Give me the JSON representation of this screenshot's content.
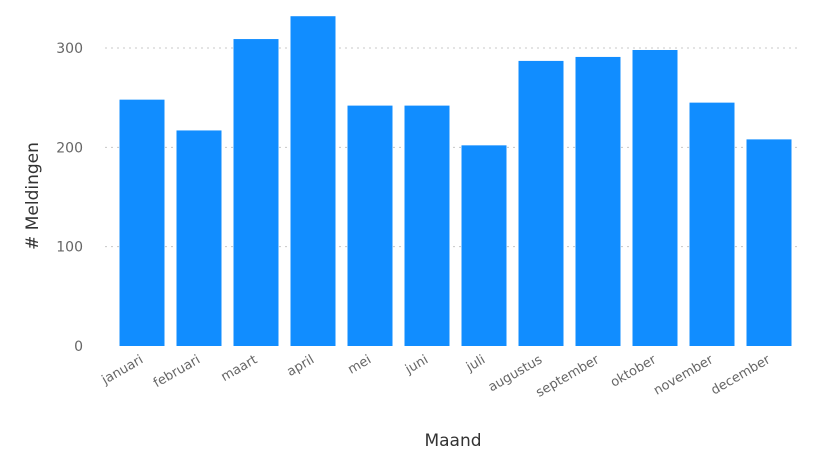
{
  "chart_data": {
    "type": "bar",
    "xlabel": "Maand",
    "ylabel": "# Meldingen",
    "categories": [
      "januari",
      "februari",
      "maart",
      "april",
      "mei",
      "juni",
      "juli",
      "augustus",
      "september",
      "oktober",
      "november",
      "december"
    ],
    "values": [
      248,
      217,
      309,
      332,
      242,
      242,
      202,
      287,
      291,
      298,
      245,
      208
    ],
    "ylim": [
      0,
      345
    ],
    "yticks": [
      0,
      100,
      200,
      300
    ],
    "grid": true,
    "bar_color": "#118dff"
  }
}
